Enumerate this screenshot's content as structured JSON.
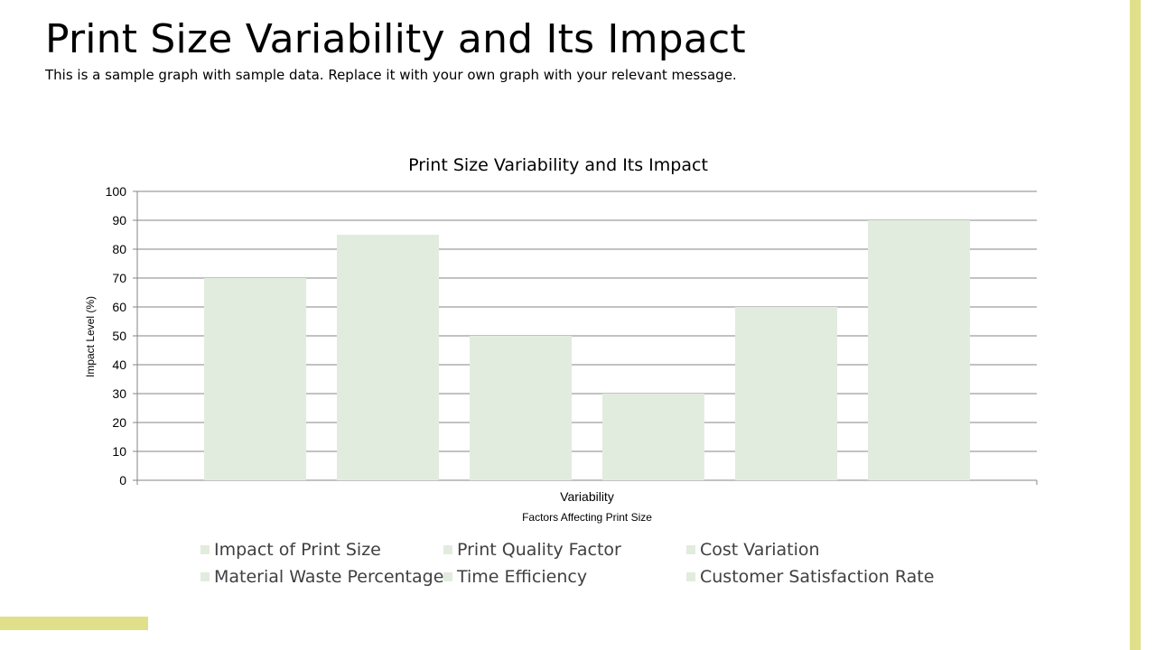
{
  "slide": {
    "title": "Print Size Variability and Its Impact",
    "subtitle": "This is a sample graph with sample data. Replace it with your own graph with your relevant message."
  },
  "colors": {
    "accent": "#e0e08a",
    "bar": "#e2ecde",
    "gridline": "#868686",
    "axis_text": "#000000",
    "legend_text": "#404040"
  },
  "chart_data": {
    "type": "bar",
    "title": "Print Size Variability  and Its Impact",
    "categories": [
      "Variability"
    ],
    "category_label": "Variability",
    "xlabel": "Factors Affecting Print Size",
    "ylabel": "Impact Level (%)",
    "ylim": [
      0,
      100
    ],
    "yticks": [
      0,
      10,
      20,
      30,
      40,
      50,
      60,
      70,
      80,
      90,
      100
    ],
    "grid": true,
    "legend_position": "bottom",
    "series": [
      {
        "name": "Impact of Print Size",
        "values": [
          70
        ]
      },
      {
        "name": "Print Quality Factor",
        "values": [
          85
        ]
      },
      {
        "name": "Cost Variation",
        "values": [
          50
        ]
      },
      {
        "name": "Material Waste Percentage",
        "values": [
          30
        ]
      },
      {
        "name": "Time Efficiency",
        "values": [
          60
        ]
      },
      {
        "name": "Customer Satisfaction Rate",
        "values": [
          90
        ]
      }
    ]
  }
}
